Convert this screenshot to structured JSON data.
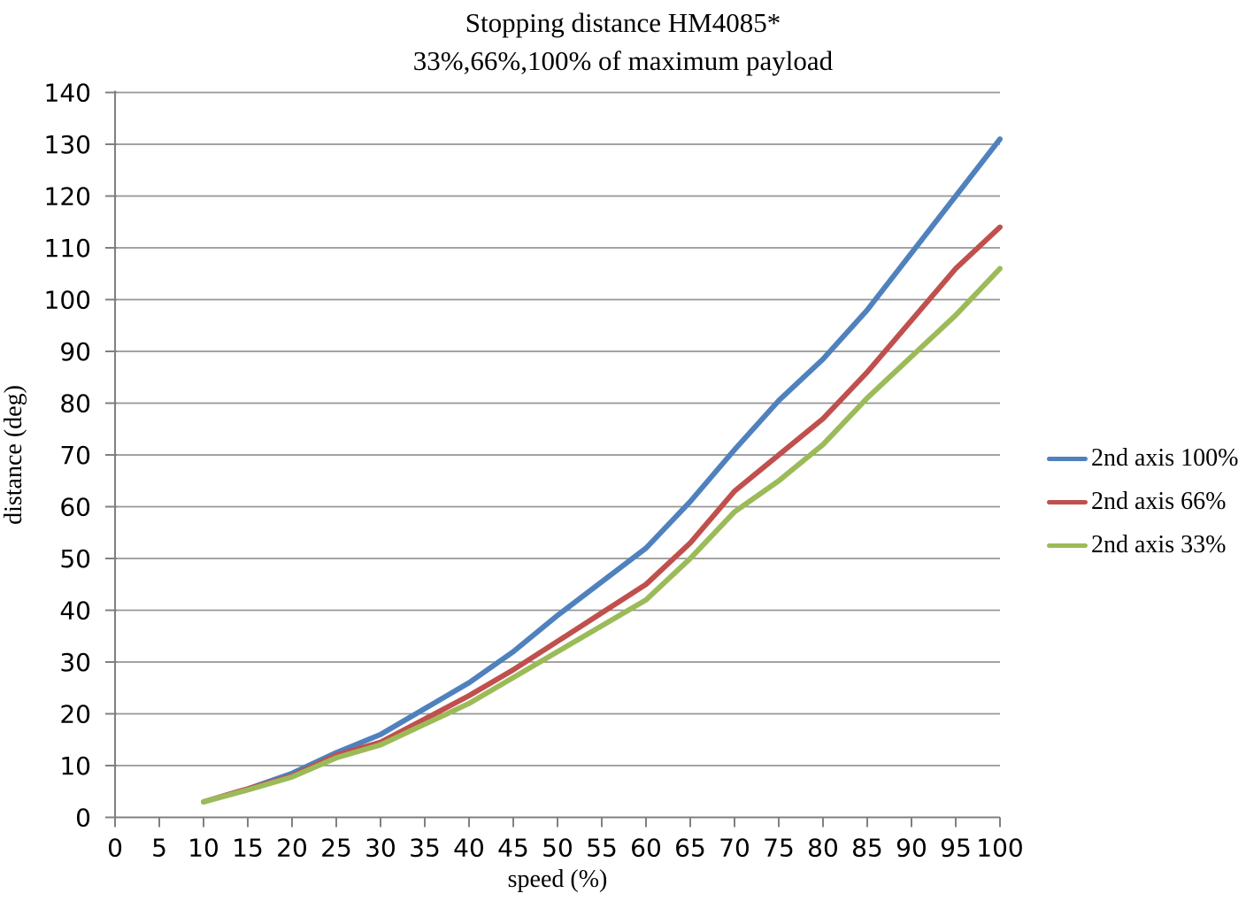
{
  "chart_data": {
    "type": "line",
    "title": "Stopping distance HM4085*",
    "subtitle": "33%,66%,100% of maximum payload",
    "xlabel": "speed (%)",
    "ylabel": "distance (deg)",
    "xlim": [
      0,
      100
    ],
    "ylim": [
      0,
      140
    ],
    "x_tick_step": 5,
    "y_tick_step": 10,
    "grid": "horizontal-major",
    "legend_position": "right",
    "x": [
      10,
      15,
      20,
      25,
      30,
      35,
      40,
      45,
      50,
      55,
      60,
      65,
      70,
      75,
      80,
      85,
      90,
      95,
      100
    ],
    "series": [
      {
        "name": "2nd axis 100%",
        "color": "#4F81BD",
        "values": [
          3,
          5.5,
          8.5,
          12.5,
          16,
          21,
          26,
          32,
          39,
          45.5,
          52,
          61,
          71,
          80.5,
          88.5,
          98,
          109,
          120,
          131
        ]
      },
      {
        "name": "2nd axis 66%",
        "color": "#C0504D",
        "values": [
          3,
          5.5,
          8,
          12,
          14.5,
          19,
          23.5,
          28.5,
          34,
          39.5,
          45,
          53,
          63,
          70,
          77,
          86,
          96,
          106,
          114
        ]
      },
      {
        "name": "2nd axis 33%",
        "color": "#9BBB59",
        "values": [
          3,
          5.3,
          7.8,
          11.5,
          14,
          18,
          22,
          27,
          32,
          37,
          42,
          50,
          59,
          65,
          72,
          81,
          89,
          97,
          106
        ]
      }
    ],
    "colors": {
      "gridline": "#969696",
      "axis": "#808080",
      "text": "#000000",
      "background": "#ffffff"
    }
  }
}
